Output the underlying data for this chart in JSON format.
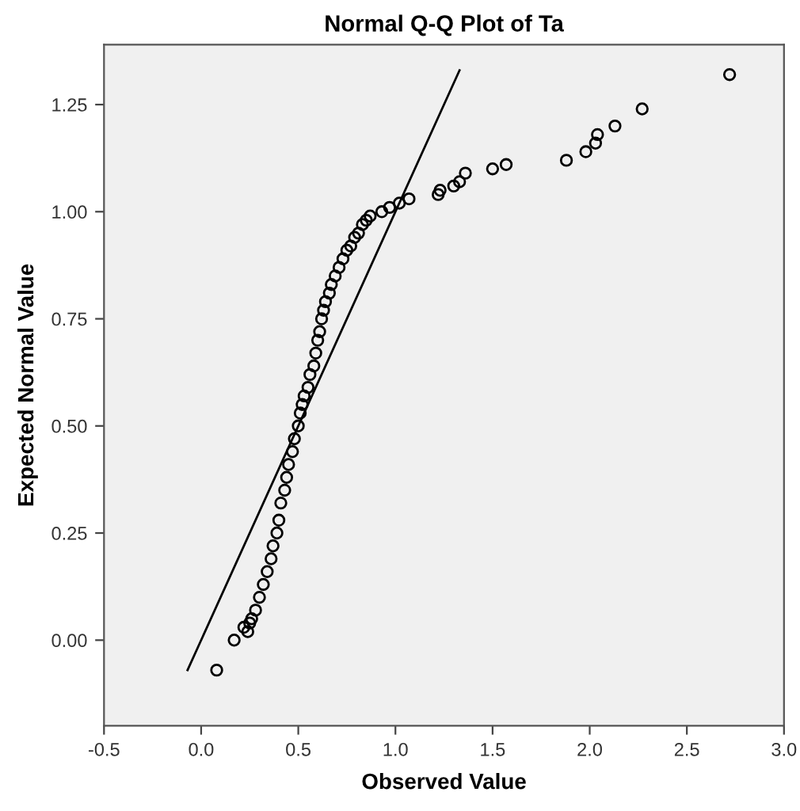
{
  "chart_data": {
    "type": "scatter",
    "title": "Normal Q-Q Plot of Ta",
    "xlabel": "Observed Value",
    "ylabel": "Expected Normal Value",
    "xlim": [
      -0.5,
      3.0
    ],
    "ylim": [
      -0.2,
      1.39
    ],
    "xticks": [
      {
        "value": -0.5,
        "label": "-0.5"
      },
      {
        "value": 0.0,
        "label": "0.0"
      },
      {
        "value": 0.5,
        "label": "0.5"
      },
      {
        "value": 1.0,
        "label": "1.0"
      },
      {
        "value": 1.5,
        "label": "1.5"
      },
      {
        "value": 2.0,
        "label": "2.0"
      },
      {
        "value": 2.5,
        "label": "2.5"
      },
      {
        "value": 3.0,
        "label": "3.0"
      }
    ],
    "yticks": [
      {
        "value": 0.0,
        "label": "0.00"
      },
      {
        "value": 0.25,
        "label": "0.25"
      },
      {
        "value": 0.5,
        "label": "0.50"
      },
      {
        "value": 0.75,
        "label": "0.75"
      },
      {
        "value": 1.0,
        "label": "1.00"
      },
      {
        "value": 1.25,
        "label": "1.25"
      }
    ],
    "grid": false,
    "legend": false,
    "series": [
      {
        "marker": "circle",
        "color": "#000000",
        "x": [
          0.08,
          0.17,
          0.22,
          0.24,
          0.25,
          0.26,
          0.28,
          0.3,
          0.32,
          0.34,
          0.36,
          0.37,
          0.39,
          0.4,
          0.41,
          0.43,
          0.44,
          0.45,
          0.47,
          0.48,
          0.5,
          0.51,
          0.52,
          0.53,
          0.55,
          0.56,
          0.58,
          0.59,
          0.6,
          0.61,
          0.62,
          0.63,
          0.64,
          0.66,
          0.67,
          0.69,
          0.71,
          0.73,
          0.75,
          0.77,
          0.79,
          0.81,
          0.83,
          0.85,
          0.87,
          0.93,
          0.97,
          1.02,
          1.07,
          1.22,
          1.23,
          1.3,
          1.33,
          1.36,
          1.5,
          1.57,
          1.88,
          1.98,
          2.03,
          2.04,
          2.13,
          2.27,
          2.72
        ],
        "values": [
          -0.07,
          0.0,
          0.03,
          0.02,
          0.04,
          0.05,
          0.07,
          0.1,
          0.13,
          0.16,
          0.19,
          0.22,
          0.25,
          0.28,
          0.32,
          0.35,
          0.38,
          0.41,
          0.44,
          0.47,
          0.5,
          0.53,
          0.55,
          0.57,
          0.59,
          0.62,
          0.64,
          0.67,
          0.7,
          0.72,
          0.75,
          0.77,
          0.79,
          0.81,
          0.83,
          0.85,
          0.87,
          0.89,
          0.91,
          0.92,
          0.94,
          0.95,
          0.97,
          0.98,
          0.99,
          1.0,
          1.01,
          1.02,
          1.03,
          1.04,
          1.05,
          1.06,
          1.07,
          1.09,
          1.1,
          1.11,
          1.12,
          1.14,
          1.16,
          1.18,
          1.2,
          1.24,
          1.32
        ]
      },
      {
        "type": "line",
        "line_style": "solid",
        "color": "#000000",
        "x": [
          -0.07,
          1.33
        ],
        "values": [
          -0.07,
          1.33
        ]
      }
    ]
  }
}
